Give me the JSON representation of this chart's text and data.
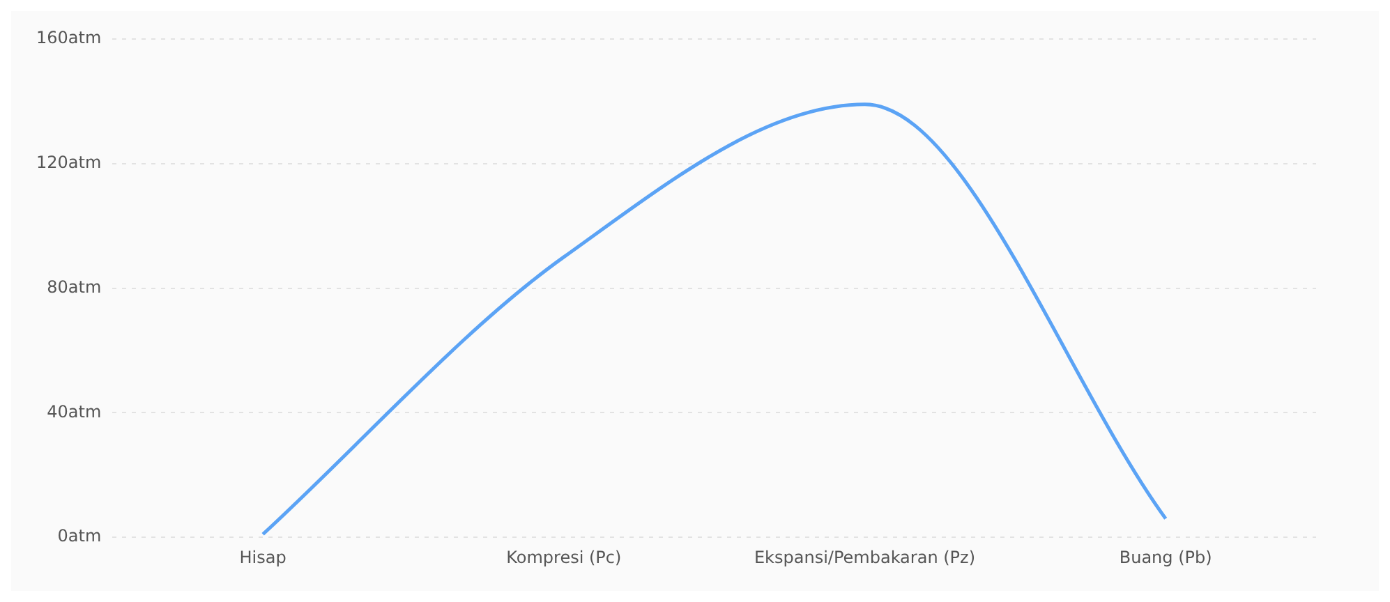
{
  "chart_data": {
    "type": "line",
    "categories": [
      "Hisap",
      "Kompresi (Pc)",
      "Ekspansi/Pembakaran (Pz)",
      "Buang (Pb)"
    ],
    "series": [
      {
        "color": "#5ba3f5",
        "values": [
          1,
          90,
          139,
          6
        ]
      }
    ],
    "ylim": [
      0,
      160
    ],
    "yticks": [
      {
        "value": 0,
        "label": "0atm"
      },
      {
        "value": 40,
        "label": "40atm"
      },
      {
        "value": 80,
        "label": "80atm"
      },
      {
        "value": 120,
        "label": "120atm"
      },
      {
        "value": 160,
        "label": "160atm"
      }
    ],
    "grid": "y",
    "legend": false,
    "marker": "none",
    "line_style": "solid"
  }
}
